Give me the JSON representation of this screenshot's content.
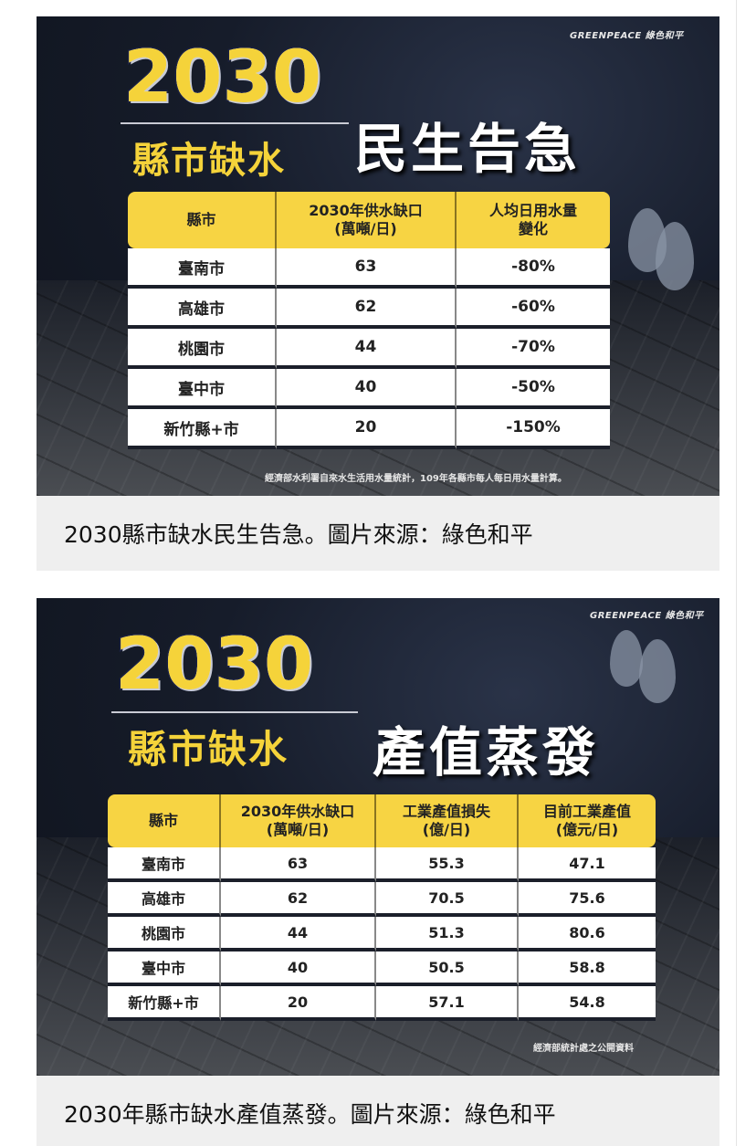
{
  "figures": [
    {
      "logo": "GREENPEACE 綠色和平",
      "year": "2030",
      "subtitle": "縣市缺水",
      "headline": "民生告急",
      "headers": [
        "縣市",
        "2030年供水缺口\n(萬噸/日)",
        "人均日用水量\n變化"
      ],
      "rows": [
        [
          "臺南市",
          "63",
          "-80%"
        ],
        [
          "高雄市",
          "62",
          "-60%"
        ],
        [
          "桃園市",
          "44",
          "-70%"
        ],
        [
          "臺中市",
          "40",
          "-50%"
        ],
        [
          "新竹縣+市",
          "20",
          "-150%"
        ]
      ],
      "note": "經濟部水利署自來水生活用水量統計，109年各縣市每人每日用水量計算。",
      "caption": "2030縣市缺水民生告急。圖片來源：綠色和平"
    },
    {
      "logo": "GREENPEACE 綠色和平",
      "year": "2030",
      "subtitle": "縣市缺水",
      "headline": "產值蒸發",
      "headers": [
        "縣市",
        "2030年供水缺口\n(萬噸/日)",
        "工業產值損失\n(億/日)",
        "目前工業產值\n(億元/日)"
      ],
      "rows": [
        [
          "臺南市",
          "63",
          "55.3",
          "47.1"
        ],
        [
          "高雄市",
          "62",
          "70.5",
          "75.6"
        ],
        [
          "桃園市",
          "44",
          "51.3",
          "80.6"
        ],
        [
          "臺中市",
          "40",
          "50.5",
          "58.8"
        ],
        [
          "新竹縣+市",
          "20",
          "57.1",
          "54.8"
        ]
      ],
      "note": "經濟部統計處之公開資料",
      "caption": "2030年縣市缺水產值蒸發。圖片來源：綠色和平"
    }
  ],
  "colors": {
    "yellow": "#f7d443",
    "navy": "#161c2a",
    "caption_bg": "#efefef"
  }
}
